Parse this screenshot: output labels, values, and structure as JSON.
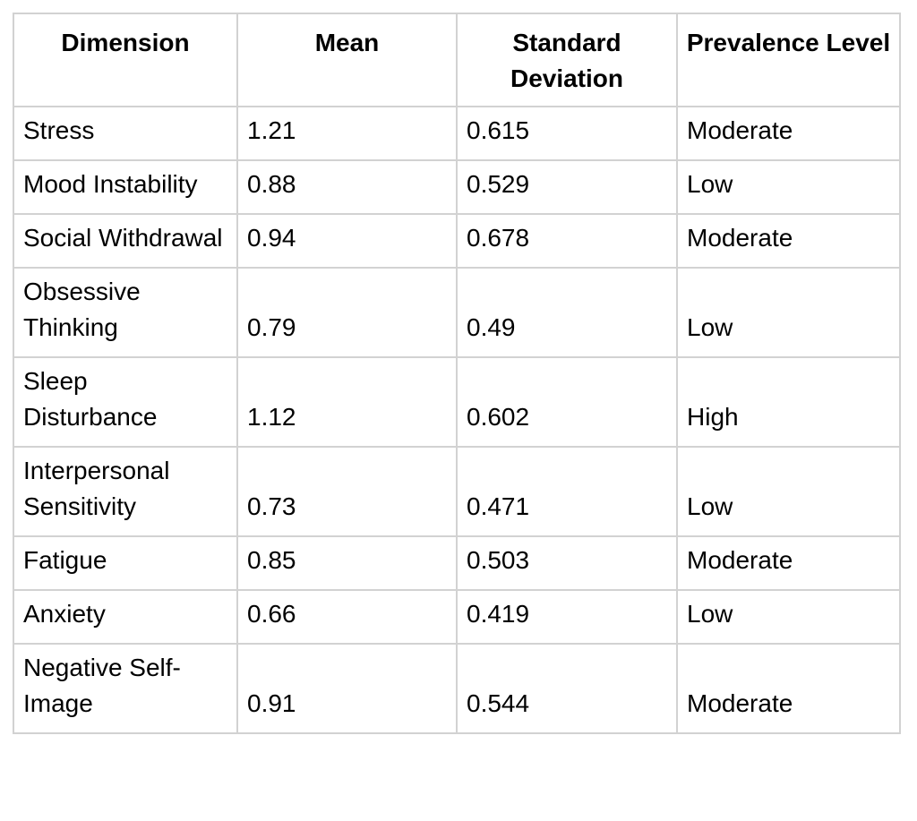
{
  "chart_data": {
    "type": "table",
    "title": "",
    "columns": [
      "Dimension",
      "Mean",
      "Standard Deviation",
      "Prevalence Level"
    ],
    "rows": [
      [
        "Stress",
        "1.21",
        "0.615",
        "Moderate"
      ],
      [
        "Mood Instability",
        "0.88",
        "0.529",
        "Low"
      ],
      [
        "Social Withdrawal",
        "0.94",
        "0.678",
        "Moderate"
      ],
      [
        "Obsessive Thinking",
        "0.79",
        "0.49",
        "Low"
      ],
      [
        "Sleep Disturbance",
        "1.12",
        "0.602",
        "High"
      ],
      [
        "Interpersonal Sensitivity",
        "0.73",
        "0.471",
        "Low"
      ],
      [
        "Fatigue",
        "0.85",
        "0.503",
        "Moderate"
      ],
      [
        "Anxiety",
        "0.66",
        "0.419",
        "Low"
      ],
      [
        "Negative Self-Image",
        "0.91",
        "0.544",
        "Moderate"
      ]
    ]
  },
  "style": {
    "border_color": "#d2d2d2",
    "text_color": "#000000",
    "background_color": "#ffffff"
  }
}
